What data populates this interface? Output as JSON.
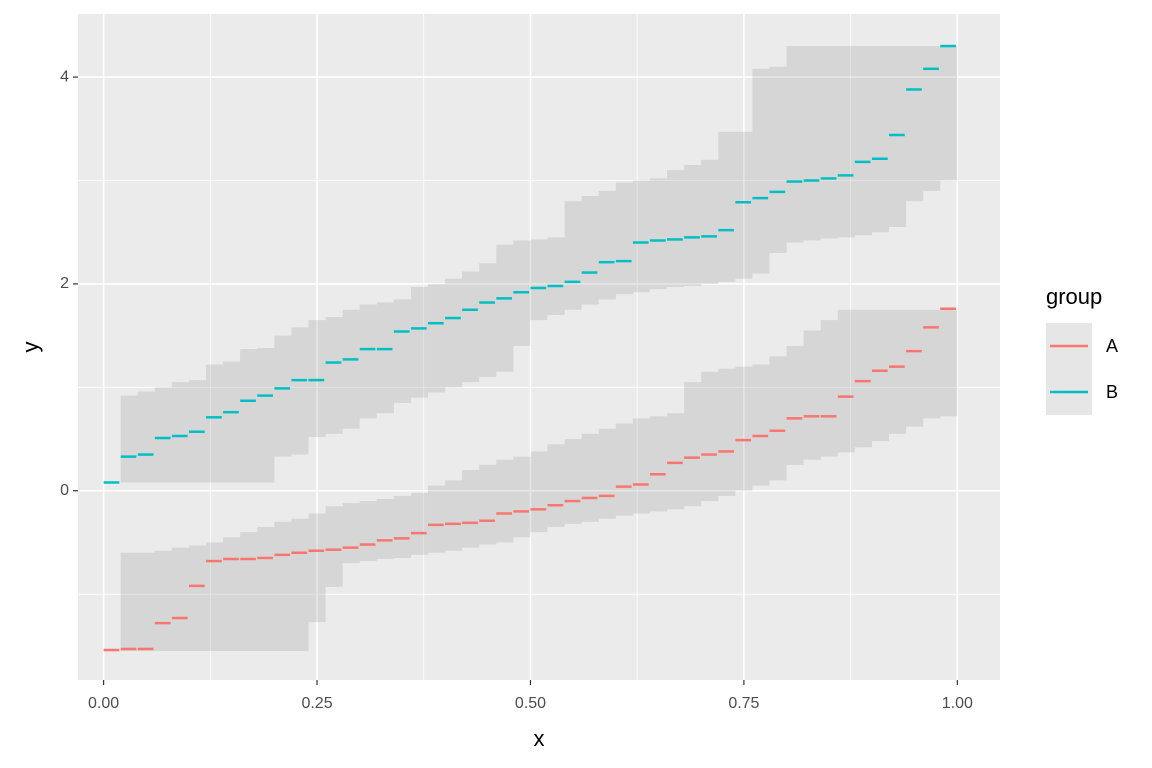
{
  "chart_data": {
    "type": "step-ribbon",
    "xlabel": "x",
    "ylabel": "y",
    "x": [
      0,
      0.02,
      0.04,
      0.06,
      0.08,
      0.1,
      0.12,
      0.14,
      0.16,
      0.18,
      0.2,
      0.22,
      0.24,
      0.26,
      0.28,
      0.3,
      0.32,
      0.34,
      0.36,
      0.38,
      0.4,
      0.42,
      0.44,
      0.46,
      0.48,
      0.5,
      0.52,
      0.54,
      0.56,
      0.58,
      0.6,
      0.62,
      0.64,
      0.66,
      0.68,
      0.7,
      0.72,
      0.74,
      0.76,
      0.78,
      0.8,
      0.82,
      0.84,
      0.86,
      0.88,
      0.9,
      0.92,
      0.94,
      0.96,
      0.98
    ],
    "series": [
      {
        "name": "A",
        "color": "#F8766D",
        "values": [
          -1.54,
          -1.53,
          -1.53,
          -1.28,
          -1.23,
          -0.92,
          -0.68,
          -0.66,
          -0.66,
          -0.65,
          -0.62,
          -0.6,
          -0.58,
          -0.57,
          -0.55,
          -0.52,
          -0.48,
          -0.46,
          -0.41,
          -0.33,
          -0.32,
          -0.31,
          -0.29,
          -0.22,
          -0.2,
          -0.18,
          -0.14,
          -0.1,
          -0.07,
          -0.05,
          0.04,
          0.06,
          0.16,
          0.27,
          0.32,
          0.35,
          0.38,
          0.49,
          0.53,
          0.58,
          0.7,
          0.72,
          0.72,
          0.91,
          1.06,
          1.16,
          1.2,
          1.35,
          1.58,
          1.76
        ],
        "lower": [
          null,
          -1.55,
          -1.55,
          -1.55,
          -1.55,
          -1.55,
          -1.55,
          -1.55,
          -1.55,
          -1.55,
          -1.55,
          -1.55,
          -1.27,
          -0.93,
          -0.7,
          -0.68,
          -0.66,
          -0.65,
          -0.62,
          -0.6,
          -0.58,
          -0.55,
          -0.52,
          -0.5,
          -0.45,
          -0.4,
          -0.35,
          -0.32,
          -0.3,
          -0.27,
          -0.24,
          -0.22,
          -0.2,
          -0.18,
          -0.15,
          -0.1,
          -0.05,
          0.0,
          0.05,
          0.1,
          0.25,
          0.3,
          0.33,
          0.37,
          0.42,
          0.48,
          0.55,
          0.62,
          0.7,
          0.72
        ],
        "upper": [
          null,
          -0.6,
          -0.6,
          -0.58,
          -0.55,
          -0.53,
          -0.5,
          -0.45,
          -0.4,
          -0.35,
          -0.3,
          -0.27,
          -0.22,
          -0.15,
          -0.12,
          -0.1,
          -0.08,
          -0.05,
          -0.02,
          0.05,
          0.1,
          0.2,
          0.25,
          0.3,
          0.33,
          0.38,
          0.45,
          0.5,
          0.55,
          0.6,
          0.65,
          0.7,
          0.72,
          0.75,
          1.05,
          1.15,
          1.18,
          1.2,
          1.22,
          1.3,
          1.4,
          1.55,
          1.65,
          1.75,
          1.75,
          1.75,
          1.75,
          1.75,
          1.75,
          1.75
        ]
      },
      {
        "name": "B",
        "color": "#00BFC4",
        "values": [
          0.08,
          0.33,
          0.35,
          0.51,
          0.53,
          0.57,
          0.71,
          0.76,
          0.87,
          0.92,
          0.99,
          1.07,
          1.07,
          1.24,
          1.27,
          1.37,
          1.37,
          1.54,
          1.57,
          1.62,
          1.67,
          1.75,
          1.82,
          1.86,
          1.92,
          1.96,
          1.98,
          2.02,
          2.11,
          2.21,
          2.22,
          2.4,
          2.42,
          2.43,
          2.45,
          2.46,
          2.52,
          2.79,
          2.83,
          2.89,
          2.99,
          3.0,
          3.02,
          3.05,
          3.18,
          3.21,
          3.44,
          3.88,
          4.08,
          4.3
        ],
        "lower": [
          null,
          0.08,
          0.08,
          0.08,
          0.08,
          0.08,
          0.08,
          0.08,
          0.08,
          0.08,
          0.33,
          0.35,
          0.52,
          0.55,
          0.6,
          0.7,
          0.75,
          0.85,
          0.9,
          0.95,
          1.0,
          1.05,
          1.1,
          1.15,
          1.4,
          1.65,
          1.7,
          1.75,
          1.8,
          1.85,
          1.9,
          1.92,
          1.95,
          1.97,
          1.98,
          2.0,
          2.02,
          2.05,
          2.1,
          2.3,
          2.4,
          2.42,
          2.44,
          2.45,
          2.47,
          2.5,
          2.55,
          2.8,
          2.9,
          3.0
        ],
        "upper": [
          null,
          0.92,
          0.96,
          1.0,
          1.05,
          1.07,
          1.22,
          1.25,
          1.37,
          1.38,
          1.5,
          1.58,
          1.65,
          1.68,
          1.75,
          1.8,
          1.82,
          1.85,
          1.97,
          2.0,
          2.05,
          2.12,
          2.2,
          2.38,
          2.42,
          2.43,
          2.45,
          2.8,
          2.85,
          2.9,
          2.98,
          3.0,
          3.02,
          3.1,
          3.15,
          3.2,
          3.47,
          3.47,
          4.08,
          4.1,
          4.3,
          4.3,
          4.3,
          4.3,
          4.3,
          4.3,
          4.3,
          4.3,
          4.3,
          4.3
        ]
      }
    ],
    "ribbon_color": "#808080",
    "ribbon_alpha": 0.2,
    "xlim": [
      -0.03,
      1.05
    ],
    "ylim": [
      -1.83,
      4.61
    ],
    "xticks": [
      {
        "value": 0,
        "label": "0.00"
      },
      {
        "value": 0.25,
        "label": "0.25"
      },
      {
        "value": 0.5,
        "label": "0.50"
      },
      {
        "value": 0.75,
        "label": "0.75"
      },
      {
        "value": 1,
        "label": "1.00"
      }
    ],
    "yticks": [
      0,
      2,
      4
    ],
    "x_minor_ticks": [
      0.125,
      0.375,
      0.625,
      0.875
    ],
    "y_minor_ticks": [
      -1,
      1,
      3
    ],
    "grid": true,
    "legend": {
      "title": "group",
      "position": "right"
    }
  }
}
